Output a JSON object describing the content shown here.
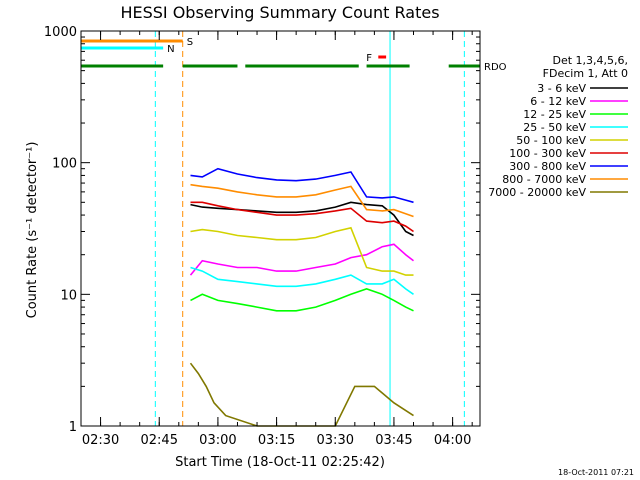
{
  "chart_data": {
    "type": "line",
    "title": "HESSI Observing Summary Count Rates",
    "xlabel": "Start Time (18-Oct-11 02:25:42)",
    "ylabel": "Count Rate (s⁻¹ detector⁻¹)",
    "yscale": "log",
    "xlim": [
      "02:25",
      "04:07"
    ],
    "ylim": [
      1,
      1000
    ],
    "x_ticks": [
      "02:30",
      "02:45",
      "03:00",
      "03:15",
      "03:30",
      "03:45",
      "04:00"
    ],
    "y_ticks": [
      "1",
      "10",
      "100",
      "1000"
    ],
    "legend_header": [
      "Det 1,3,4,5,6,",
      "FDecim 1, Att 0"
    ],
    "legend_position": "right",
    "footer": "18-Oct-2011 07:21",
    "series": [
      {
        "name": "3 - 6 keV",
        "color": "#000000",
        "x": [
          "02:53",
          "02:56",
          "03:00",
          "03:05",
          "03:10",
          "03:15",
          "03:20",
          "03:25",
          "03:30",
          "03:34",
          "03:38",
          "03:42",
          "03:45",
          "03:48",
          "03:50"
        ],
        "values": [
          48,
          46,
          45,
          44,
          43,
          42,
          42,
          43,
          46,
          50,
          48,
          47,
          40,
          30,
          28
        ]
      },
      {
        "name": "6 - 12 keV",
        "color": "#ff00ff",
        "x": [
          "02:53",
          "02:56",
          "03:00",
          "03:05",
          "03:10",
          "03:15",
          "03:20",
          "03:25",
          "03:30",
          "03:34",
          "03:38",
          "03:42",
          "03:45",
          "03:48",
          "03:50"
        ],
        "values": [
          14,
          18,
          17,
          16,
          16,
          15,
          15,
          16,
          17,
          19,
          20,
          23,
          24,
          20,
          18
        ]
      },
      {
        "name": "12 - 25 keV",
        "color": "#00ff00",
        "x": [
          "02:53",
          "02:56",
          "03:00",
          "03:05",
          "03:10",
          "03:15",
          "03:20",
          "03:25",
          "03:30",
          "03:34",
          "03:38",
          "03:42",
          "03:45",
          "03:48",
          "03:50"
        ],
        "values": [
          9,
          10,
          9,
          8.5,
          8,
          7.5,
          7.5,
          8,
          9,
          10,
          11,
          10,
          9,
          8,
          7.5
        ]
      },
      {
        "name": "25 - 50 keV",
        "color": "#00ffff",
        "x": [
          "02:53",
          "02:56",
          "03:00",
          "03:05",
          "03:10",
          "03:15",
          "03:20",
          "03:25",
          "03:30",
          "03:34",
          "03:38",
          "03:42",
          "03:45",
          "03:48",
          "03:50"
        ],
        "values": [
          16,
          15,
          13,
          12.5,
          12,
          11.5,
          11.5,
          12,
          13,
          14,
          12,
          12,
          13,
          11,
          10
        ]
      },
      {
        "name": "50 - 100 keV",
        "color": "#d2d200",
        "x": [
          "02:53",
          "02:56",
          "03:00",
          "03:05",
          "03:10",
          "03:15",
          "03:20",
          "03:25",
          "03:30",
          "03:34",
          "03:38",
          "03:42",
          "03:45",
          "03:48",
          "03:50"
        ],
        "values": [
          30,
          31,
          30,
          28,
          27,
          26,
          26,
          27,
          30,
          32,
          16,
          15,
          15,
          14,
          14
        ]
      },
      {
        "name": "100 - 300 keV",
        "color": "#dd0000",
        "x": [
          "02:53",
          "02:56",
          "03:00",
          "03:05",
          "03:10",
          "03:15",
          "03:20",
          "03:25",
          "03:30",
          "03:34",
          "03:38",
          "03:42",
          "03:45",
          "03:48",
          "03:50"
        ],
        "values": [
          50,
          50,
          47,
          44,
          42,
          40,
          40,
          41,
          43,
          45,
          36,
          35,
          36,
          33,
          30
        ]
      },
      {
        "name": "300 - 800 keV",
        "color": "#0000ff",
        "x": [
          "02:53",
          "02:56",
          "03:00",
          "03:05",
          "03:10",
          "03:15",
          "03:20",
          "03:25",
          "03:30",
          "03:34",
          "03:38",
          "03:42",
          "03:45",
          "03:48",
          "03:50"
        ],
        "values": [
          80,
          78,
          90,
          82,
          77,
          74,
          73,
          75,
          80,
          85,
          55,
          54,
          55,
          52,
          50
        ]
      },
      {
        "name": "800 - 7000 keV",
        "color": "#ff8c00",
        "x": [
          "02:53",
          "02:56",
          "03:00",
          "03:05",
          "03:10",
          "03:15",
          "03:20",
          "03:25",
          "03:30",
          "03:34",
          "03:38",
          "03:42",
          "03:45",
          "03:48",
          "03:50"
        ],
        "values": [
          68,
          66,
          64,
          60,
          57,
          55,
          55,
          57,
          62,
          66,
          44,
          43,
          44,
          41,
          39
        ]
      },
      {
        "name": "7000 - 20000 keV",
        "color": "#807800",
        "x": [
          "02:53",
          "02:55",
          "02:57",
          "02:59",
          "03:02",
          "03:10",
          "03:20",
          "03:30",
          "03:35",
          "03:40",
          "03:45",
          "03:50"
        ],
        "values": [
          3,
          2.5,
          2,
          1.5,
          1.2,
          1,
          1,
          1,
          2,
          2,
          1.5,
          1.2
        ]
      }
    ],
    "flags": [
      {
        "label": "S",
        "color": "#ff8c00",
        "start": "02:25",
        "end": "02:51"
      },
      {
        "label": "N",
        "color": "#00ffff",
        "start": "02:25",
        "end": "02:46"
      },
      {
        "label": "RDO",
        "color": "#008000",
        "start": "02:25",
        "end": "04:07",
        "breaks": [
          [
            "02:46",
            "02:51"
          ],
          [
            "03:05",
            "03:07"
          ],
          [
            "03:36",
            "03:38"
          ],
          [
            "03:49",
            "03:59"
          ]
        ]
      },
      {
        "label": "F",
        "color": "#ff0000",
        "start": "03:41",
        "end": "03:43"
      }
    ],
    "vlines": [
      {
        "x": "02:44",
        "color": "#00ffff",
        "style": "dashed"
      },
      {
        "x": "02:51",
        "color": "#ff8c00",
        "style": "dashed"
      },
      {
        "x": "03:44",
        "color": "#00ffff",
        "style": "solid"
      },
      {
        "x": "04:03",
        "color": "#00ffff",
        "style": "dashed"
      }
    ]
  }
}
